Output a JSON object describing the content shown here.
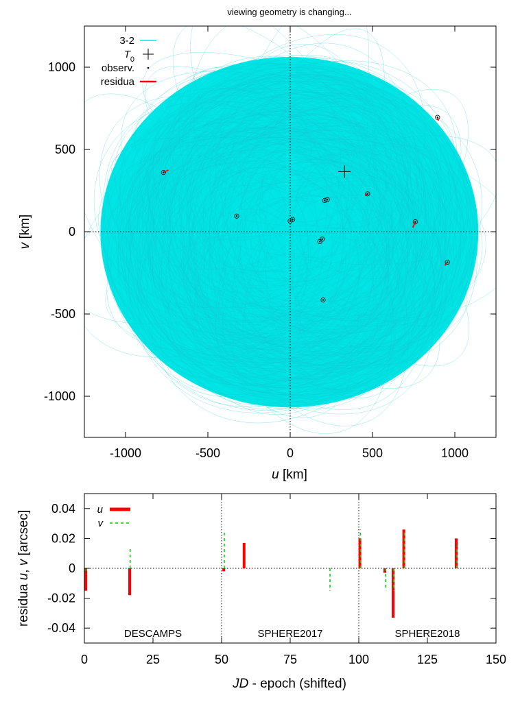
{
  "chart_data": [
    {
      "type": "scatter",
      "title": "viewing geometry is changing...",
      "xlabel_italic": "u",
      "xlabel_unit": " [km]",
      "ylabel_italic": "v",
      "ylabel_unit": " [km]",
      "xlim": [
        -1250,
        1250
      ],
      "ylim": [
        -1250,
        1250
      ],
      "xticks": [
        -1000,
        -500,
        0,
        500,
        1000
      ],
      "yticks": [
        -1000,
        -500,
        0,
        500,
        1000
      ],
      "grid": false,
      "zero_lines": true,
      "legend_placement": "top-left",
      "legend": [
        {
          "label": "3-2",
          "style": "line",
          "color": "#00e5e5"
        },
        {
          "label": "T0",
          "style": "plus",
          "color": "#000000"
        },
        {
          "label": "observ.",
          "style": "dot",
          "color": "#000000"
        },
        {
          "label": "residua",
          "style": "line",
          "color": "#ff0000"
        }
      ],
      "orbit_envelope": {
        "color": "#00e5e5",
        "u_extent": [
          -1150,
          1140
        ],
        "v_extent": [
          -1065,
          1060
        ]
      },
      "t0": {
        "u": 330,
        "v": 365
      },
      "observations": [
        {
          "u": -770,
          "v": 360,
          "du": 30,
          "dv": 15
        },
        {
          "u": -325,
          "v": 95,
          "du": 0,
          "dv": 0
        },
        {
          "u": 0,
          "v": 65,
          "du": 0,
          "dv": 0
        },
        {
          "u": 15,
          "v": 75,
          "du": 0,
          "dv": 0
        },
        {
          "u": 210,
          "v": 190,
          "du": 0,
          "dv": 0
        },
        {
          "u": 225,
          "v": 195,
          "du": 0,
          "dv": 0
        },
        {
          "u": 195,
          "v": -45,
          "du": 0,
          "dv": 0
        },
        {
          "u": 180,
          "v": -60,
          "du": 0,
          "dv": 0
        },
        {
          "u": 200,
          "v": -415,
          "du": 0,
          "dv": 0
        },
        {
          "u": 470,
          "v": 230,
          "du": -15,
          "dv": -10
        },
        {
          "u": 760,
          "v": 60,
          "du": -15,
          "dv": -35
        },
        {
          "u": 895,
          "v": 695,
          "du": 5,
          "dv": -20
        },
        {
          "u": 955,
          "v": -185,
          "du": -15,
          "dv": -20
        }
      ]
    },
    {
      "type": "bar",
      "xlabel_italic": "JD",
      "xlabel_unit": " - epoch (shifted)",
      "ylabel_prefix": "residua ",
      "ylabel_u": "u",
      "ylabel_sep": ", ",
      "ylabel_v": "v",
      "ylabel_unit": " [arcsec]",
      "xlim": [
        0,
        150
      ],
      "ylim": [
        -0.05,
        0.05
      ],
      "xticks": [
        "0",
        "25",
        "50",
        "75",
        "100",
        "125",
        "150"
      ],
      "yticks": [
        "0.04",
        "0.02",
        "0",
        "-0.02",
        "-0.04"
      ],
      "ytick_values": [
        0.04,
        0.02,
        0,
        -0.02,
        -0.04
      ],
      "xtick_values": [
        0,
        25,
        50,
        75,
        100,
        125,
        150
      ],
      "separators": [
        0,
        50,
        100
      ],
      "legend_placement": "top-left",
      "legend": [
        {
          "label": "u",
          "color": "#ff0000",
          "style": "thick"
        },
        {
          "label": "v",
          "color": "#00cc00",
          "style": "dashed"
        }
      ],
      "groups": [
        {
          "label": "DESCAMPS",
          "x": 25
        },
        {
          "label": "SPHERE2017",
          "x": 75
        },
        {
          "label": "SPHERE2018",
          "x": 125
        }
      ],
      "series": [
        {
          "name": "u",
          "x": [
            0.5,
            16.5,
            50.8,
            58.2,
            100.4,
            109.5,
            112.5,
            116.4,
            135.5
          ],
          "values": [
            -0.015,
            -0.018,
            -0.002,
            0.017,
            0.02,
            -0.003,
            -0.033,
            0.026,
            0.02
          ]
        },
        {
          "name": "v",
          "x": [
            0.6,
            16.7,
            51.0,
            89.5,
            100.6,
            109.8,
            112.7,
            116.6,
            135.7
          ],
          "values": [
            -0.004,
            0.014,
            0.025,
            -0.015,
            0.026,
            -0.013,
            -0.015,
            0.024,
            0.015
          ]
        }
      ]
    }
  ]
}
